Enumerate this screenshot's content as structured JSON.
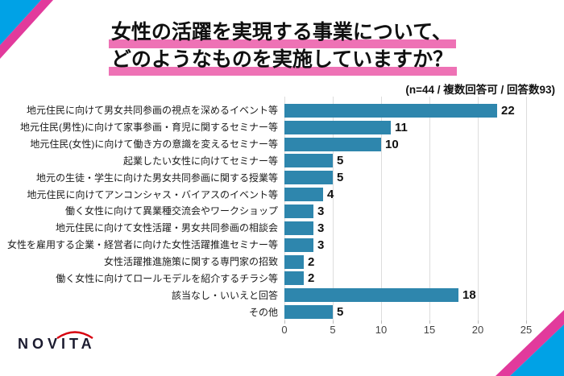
{
  "header": {
    "title_line1": "女性の活躍を実現する事業について、",
    "title_line2": "どのようなものを実施していますか？",
    "subtitle": "(n=44 / 複数回答可 / 回答数93)"
  },
  "chart_data": {
    "type": "bar",
    "orientation": "horizontal",
    "title": "女性の活躍を実現する事業について、どのようなものを実施していますか？",
    "note": "(n=44 / 複数回答可 / 回答数93)",
    "categories": [
      "地元住民に向けて男女共同参画の視点を深めるイベント等",
      "地元住民(男性)に向けて家事参画・育児に関するセミナー等",
      "地元住民(女性)に向けて働き方の意識を変えるセミナー等",
      "起業したい女性に向けてセミナー等",
      "地元の生徒・学生に向けた男女共同参画に関する授業等",
      "地元住民に向けてアンコンシャス・バイアスのイベント等",
      "働く女性に向けて異業種交流会やワークショップ",
      "地元住民に向けて女性活躍・男女共同参画の相談会",
      "女性を雇用する企業・経営者に向けた女性活躍推進セミナー等",
      "女性活躍推進施策に関する専門家の招致",
      "働く女性に向けてロールモデルを紹介するチラシ等",
      "該当なし・いいえと回答",
      "その他"
    ],
    "values": [
      22,
      11,
      10,
      5,
      5,
      4,
      3,
      3,
      3,
      2,
      2,
      18,
      5
    ],
    "x_ticks": [
      0,
      5,
      10,
      15,
      20,
      25
    ],
    "xlim": [
      0,
      25
    ],
    "grid": true,
    "legend": false,
    "bar_color": "#2E86AD"
  },
  "footer": {
    "logo_text": "NOVITA"
  },
  "colors": {
    "bar": "#2E86AD",
    "title_highlight": "#EE72B5",
    "corner_blue": "#00A2E6",
    "corner_pink": "#E23A9C",
    "logo_arc": "#D7000F",
    "logo_text": "#1B1B2F"
  }
}
